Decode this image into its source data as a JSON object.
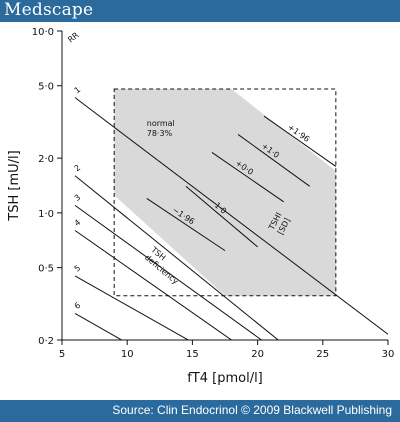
{
  "brand": {
    "name": "Medscape",
    "banner_color": "#2b6a9c"
  },
  "footer": {
    "source": "Source: Clin Endocrinol © 2009 Blackwell Publishing"
  },
  "chart_data": {
    "type": "line",
    "xlabel": "fT4 [pmol/l]",
    "ylabel": "TSH [mU/l]",
    "x_ticks": [
      5,
      10,
      15,
      20,
      25,
      30
    ],
    "x_tick_labels": [
      "5",
      "10",
      "15",
      "20",
      "25",
      "30"
    ],
    "y_scale": "log",
    "y_ticks": [
      0.2,
      0.5,
      1.0,
      2.0,
      5.0,
      10.0
    ],
    "y_tick_labels": [
      "0·2",
      "0·5",
      "1·0",
      "2·0",
      "5·0",
      "10·0"
    ],
    "xlim": [
      5,
      30
    ],
    "ylim": [
      0.2,
      10
    ],
    "rr_title": "RR",
    "rr_lines": [
      {
        "label": "1",
        "x": [
          6,
          30
        ],
        "y": [
          4.3,
          0.215
        ]
      },
      {
        "label": "2",
        "x": [
          6,
          30
        ],
        "y": [
          1.6,
          0.065
        ]
      },
      {
        "label": "3",
        "x": [
          6,
          27
        ],
        "y": [
          1.1,
          0.09
        ]
      },
      {
        "label": "4",
        "x": [
          6,
          24
        ],
        "y": [
          0.8,
          0.1
        ]
      },
      {
        "label": "5",
        "x": [
          6,
          18.5
        ],
        "y": [
          0.45,
          0.14
        ]
      },
      {
        "label": "6",
        "x": [
          6,
          15
        ],
        "y": [
          0.28,
          0.12
        ]
      }
    ],
    "normal_region": {
      "label": "normal",
      "percent": "78·3%",
      "color": "#d9d9d9",
      "polygon_x": [
        9,
        18,
        26,
        26,
        17.5,
        9
      ],
      "polygon_y": [
        4.8,
        4.8,
        1.7,
        0.35,
        0.35,
        1.25
      ]
    },
    "reference_box": {
      "x": [
        9,
        26
      ],
      "y": [
        0.35,
        4.8
      ]
    },
    "tshi_lines": [
      {
        "label": "+1·96",
        "x": [
          20.5,
          26
        ],
        "y": [
          3.4,
          1.8
        ]
      },
      {
        "label": "+1·0",
        "x": [
          18.5,
          24
        ],
        "y": [
          2.7,
          1.4
        ]
      },
      {
        "label": "+0·0",
        "x": [
          16.5,
          22
        ],
        "y": [
          2.15,
          1.15
        ]
      },
      {
        "label": "−1·0",
        "x": [
          14.5,
          20
        ],
        "y": [
          1.4,
          0.65
        ]
      },
      {
        "label": "−1·96",
        "x": [
          11.5,
          17.5
        ],
        "y": [
          1.2,
          0.62
        ]
      }
    ],
    "annotations": {
      "tshi": [
        "TSHI",
        "[SD]"
      ],
      "deficiency": [
        "TSH",
        "deficiency"
      ]
    }
  }
}
